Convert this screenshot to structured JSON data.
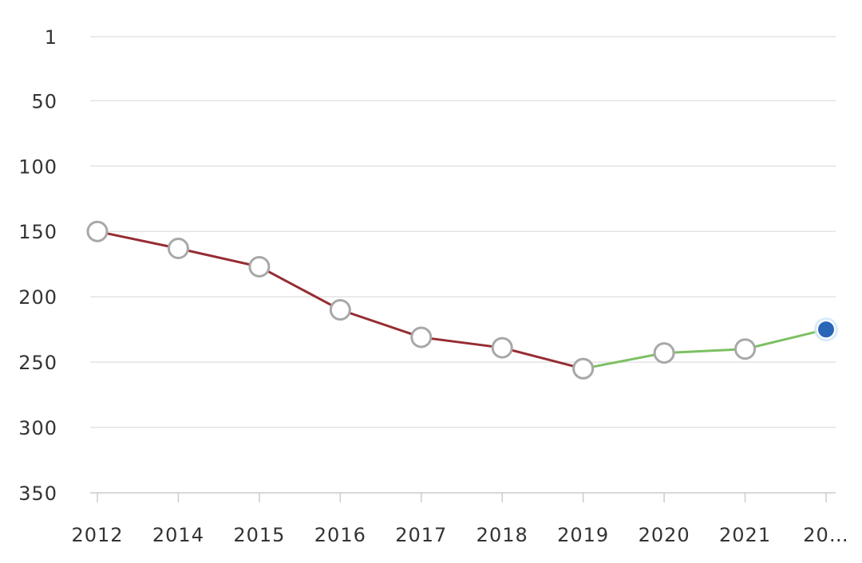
{
  "chart_data": {
    "type": "line",
    "categories": [
      "2012",
      "2014",
      "2015",
      "2016",
      "2017",
      "2018",
      "2019",
      "2020",
      "2021",
      "20…"
    ],
    "series": [
      {
        "color": "#962d33",
        "values": [
          150,
          163,
          177,
          210,
          231,
          239,
          255,
          null,
          null,
          null
        ]
      },
      {
        "color": "#7cc062",
        "values": [
          null,
          null,
          null,
          null,
          null,
          null,
          255,
          243,
          240,
          225
        ]
      }
    ],
    "ylim": [
      1,
      350
    ],
    "inverted": true,
    "yticks": [
      1,
      50,
      100,
      150,
      200,
      250,
      300,
      350
    ],
    "grid": true,
    "marker_color": "#ffffff",
    "marker_stroke": "#a8a8a8",
    "last_marker_color": "#2a66b8"
  }
}
